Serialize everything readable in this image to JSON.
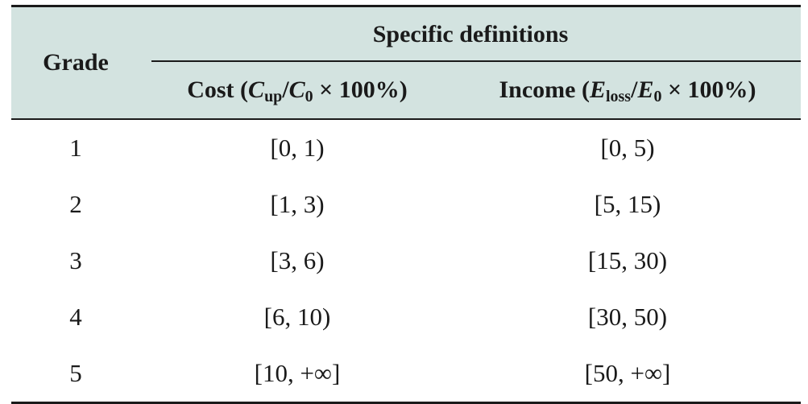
{
  "table": {
    "header": {
      "grade": "Grade",
      "group": "Specific definitions",
      "cost": {
        "prefix": "Cost (",
        "var1": "C",
        "sub1": "up",
        "slash": "/",
        "var2": "C",
        "sub2": "0",
        "suffix": " × 100%)"
      },
      "income": {
        "prefix": "Income (",
        "var1": "E",
        "sub1": "loss",
        "slash": "/",
        "var2": "E",
        "sub2": "0",
        "suffix": " × 100%)"
      }
    },
    "rows": [
      {
        "grade": "1",
        "cost": "[0, 1)",
        "income": "[0, 5)"
      },
      {
        "grade": "2",
        "cost": "[1, 3)",
        "income": "[5, 15)"
      },
      {
        "grade": "3",
        "cost": "[3, 6)",
        "income": "[15, 30)"
      },
      {
        "grade": "4",
        "cost": "[6, 10)",
        "income": "[30, 50)"
      },
      {
        "grade": "5",
        "cost": "[10, +∞]",
        "income": "[50, +∞]"
      }
    ]
  },
  "colors": {
    "header_bg": "#d3e3e0",
    "rule": "#1a1a1a"
  }
}
